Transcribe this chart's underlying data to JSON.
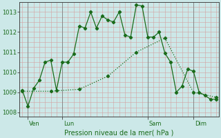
{
  "background_color": "#cce8e8",
  "grid_color": "#d4a0a0",
  "line_color": "#1a6b1a",
  "title": "Pression niveau de la mer( hPa )",
  "ylim": [
    1007.8,
    1013.5
  ],
  "yticks": [
    1008,
    1009,
    1010,
    1011,
    1012,
    1013
  ],
  "figsize": [
    3.2,
    2.0
  ],
  "dpi": 100,
  "line1_x": [
    0,
    1,
    2,
    3,
    4,
    5,
    6,
    7,
    8,
    9,
    10,
    11,
    12,
    13,
    14,
    15,
    16,
    17,
    18,
    19,
    20,
    21,
    22,
    23,
    24,
    25,
    26,
    27,
    28,
    29,
    30,
    31,
    32,
    33,
    34
  ],
  "line1_y": [
    1009.1,
    1008.3,
    1009.2,
    1009.6,
    1010.5,
    1010.6,
    1009.1,
    1010.5,
    1010.5,
    1010.9,
    1012.3,
    1012.2,
    1013.0,
    1012.2,
    1012.8,
    1012.6,
    1012.5,
    1013.0,
    1011.85,
    1011.75,
    1013.35,
    1013.3,
    1011.75,
    1011.75,
    1012.0,
    1010.95,
    1010.5,
    1009.0,
    1009.3,
    1010.15,
    1010.05,
    1009.0,
    1008.85,
    1008.65,
    1008.65
  ],
  "line2_x": [
    0,
    5,
    10,
    15,
    20,
    25,
    30,
    34
  ],
  "line2_y": [
    1009.05,
    1009.05,
    1009.15,
    1009.8,
    1011.0,
    1011.7,
    1009.0,
    1008.75
  ],
  "xtick_positions": [
    1,
    7,
    22,
    30
  ],
  "xtick_labels": [
    "Ven",
    "Lun",
    "Sam",
    "Dim"
  ],
  "vlines": [
    1,
    7,
    22,
    30
  ],
  "xlabel_fontsize": 7,
  "ytick_fontsize": 6,
  "xtick_fontsize": 6
}
